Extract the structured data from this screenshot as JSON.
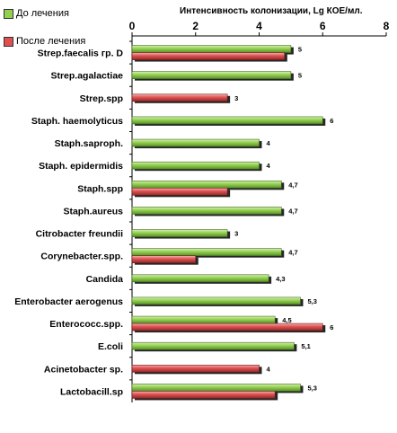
{
  "chart_data": {
    "type": "bar",
    "orientation": "horizontal",
    "xlabel": "Интенсивность колонизации, Lg КОЕ/мл.",
    "xlim": [
      0,
      8
    ],
    "xticks": [
      "0",
      "2",
      "4",
      "6",
      "8"
    ],
    "categories": [
      "Strep.faecalis гр. D",
      "Strep.agalactiae",
      "Strep.spp",
      "Staph. haemolyticus",
      "Staph.saproph.",
      "Staph. epidermidis",
      "Staph.spp",
      "Staph.aureus",
      "Citrobacter freundii",
      "Corynebacter.spp.",
      "Candida",
      "Enterobacter aerogenus",
      "Enterococc.spp.",
      "E.coli",
      "Acinetobacter sp.",
      "Lactobacill.sp"
    ],
    "series": [
      {
        "name": "До лечения",
        "color": "#92d050",
        "values": [
          5,
          5,
          null,
          6,
          4,
          4,
          4.7,
          4.7,
          3,
          4.7,
          4.3,
          5.3,
          4.5,
          5.1,
          null,
          5.3
        ],
        "labels": [
          "5",
          "5",
          "",
          "6",
          "4",
          "4",
          "4,7",
          "4,7",
          "3",
          "4,7",
          "4,3",
          "5,3",
          "4,5",
          "5,1",
          "",
          "5,3"
        ]
      },
      {
        "name": "После лечения",
        "color": "#e05050",
        "values": [
          4.8,
          null,
          3,
          null,
          null,
          null,
          3,
          null,
          null,
          2,
          null,
          null,
          6,
          null,
          4,
          4.5
        ],
        "labels": [
          "",
          "",
          "3",
          "",
          "",
          "",
          "",
          "",
          "",
          "",
          "",
          "",
          "6",
          "",
          "4",
          ""
        ]
      }
    ],
    "grid": false,
    "legend": "top-left"
  }
}
